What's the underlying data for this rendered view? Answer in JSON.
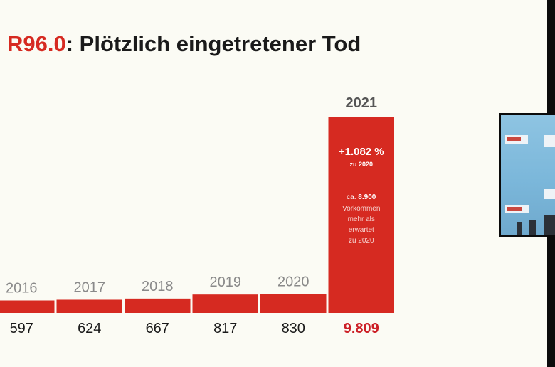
{
  "title": {
    "code": "R96.0",
    "rest": ": Plötzlich eingetretener Tod"
  },
  "colors": {
    "bar": "#d62a21",
    "highlight_value": "#cc1f26",
    "year": "#8a8a8a",
    "year_highlight": "#555555",
    "value": "#1a1a1a"
  },
  "chart_data": {
    "type": "bar",
    "title": "R96.0: Plötzlich eingetretener Tod",
    "categories": [
      "2016",
      "2017",
      "2018",
      "2019",
      "2020",
      "2021"
    ],
    "values": [
      597,
      624,
      667,
      817,
      830,
      9809
    ],
    "value_labels": [
      "597",
      "624",
      "667",
      "817",
      "830",
      "9.809"
    ],
    "highlight_index": 5,
    "annotation": {
      "change": "+1.082 %",
      "change_ref": "zu 2020",
      "excess_prefix": "ca.",
      "excess_value": "8.900",
      "excess_lines": [
        "Vorkommen",
        "mehr als",
        "erwartet",
        "zu 2020"
      ]
    }
  },
  "video_overlay": {
    "icon": "webcam-video-thumbnail"
  }
}
